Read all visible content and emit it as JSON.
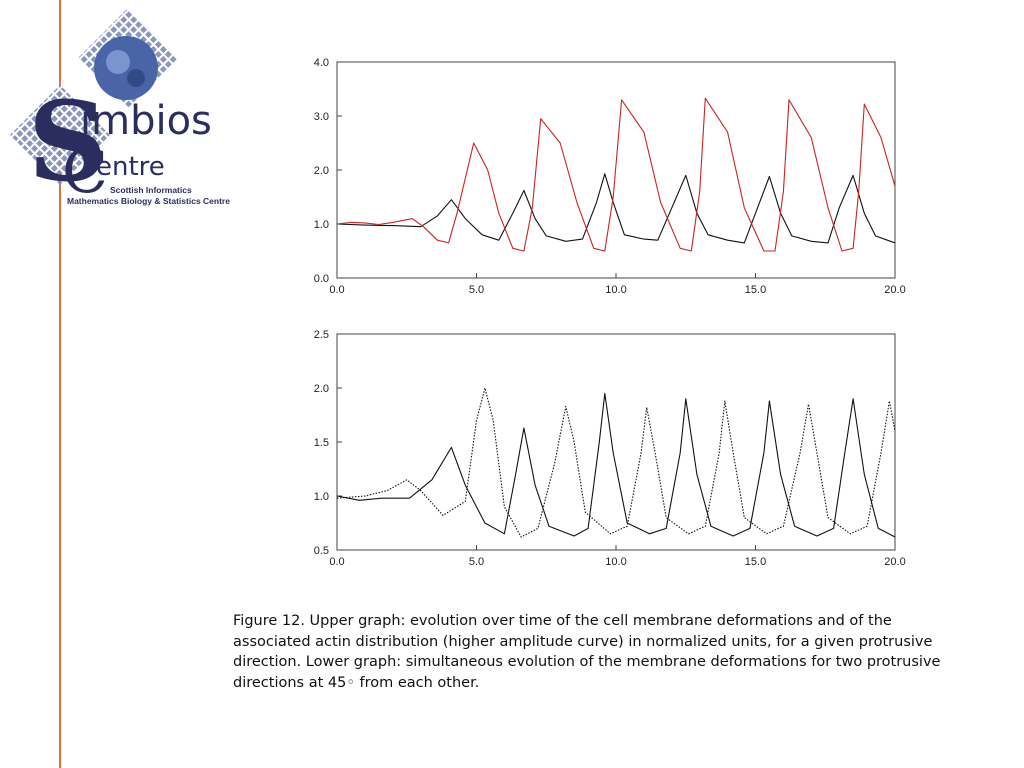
{
  "logo": {
    "name_part1": "imbios",
    "name_part2": "entre",
    "line1": "Scottish Informatics",
    "line2": "Mathematics Biology & Statistics Centre"
  },
  "colors": {
    "accent_line": "#e2703a",
    "actin_curve": "#cc2222",
    "membrane_curve": "#111111"
  },
  "chart_data": [
    {
      "type": "line",
      "xlim": [
        0,
        20
      ],
      "ylim": [
        0,
        4
      ],
      "x_ticks": [
        "0.0",
        "5.0",
        "10.0",
        "15.0",
        "20.0"
      ],
      "y_ticks": [
        "0.0",
        "1.0",
        "2.0",
        "3.0",
        "4.0"
      ],
      "grid": false,
      "series": [
        {
          "color": "#111111",
          "style": "solid",
          "points": [
            [
              0,
              1.0
            ],
            [
              1,
              0.98
            ],
            [
              2,
              0.97
            ],
            [
              3,
              0.95
            ],
            [
              3.6,
              1.15
            ],
            [
              4.1,
              1.45
            ],
            [
              4.6,
              1.1
            ],
            [
              5.2,
              0.8
            ],
            [
              5.8,
              0.7
            ],
            [
              6.3,
              1.2
            ],
            [
              6.7,
              1.62
            ],
            [
              7.1,
              1.1
            ],
            [
              7.5,
              0.78
            ],
            [
              8.2,
              0.68
            ],
            [
              8.8,
              0.72
            ],
            [
              9.3,
              1.4
            ],
            [
              9.6,
              1.93
            ],
            [
              9.9,
              1.4
            ],
            [
              10.3,
              0.8
            ],
            [
              11,
              0.72
            ],
            [
              11.5,
              0.7
            ],
            [
              12,
              1.3
            ],
            [
              12.5,
              1.9
            ],
            [
              12.9,
              1.2
            ],
            [
              13.3,
              0.8
            ],
            [
              14,
              0.7
            ],
            [
              14.6,
              0.65
            ],
            [
              15,
              1.2
            ],
            [
              15.5,
              1.88
            ],
            [
              15.9,
              1.2
            ],
            [
              16.3,
              0.78
            ],
            [
              17,
              0.68
            ],
            [
              17.6,
              0.65
            ],
            [
              18,
              1.3
            ],
            [
              18.5,
              1.9
            ],
            [
              18.9,
              1.2
            ],
            [
              19.3,
              0.78
            ],
            [
              20,
              0.65
            ]
          ]
        },
        {
          "color": "#cc2222",
          "style": "solid",
          "points": [
            [
              0,
              1.0
            ],
            [
              0.5,
              1.03
            ],
            [
              1,
              1.02
            ],
            [
              1.5,
              0.99
            ],
            [
              2,
              1.03
            ],
            [
              2.7,
              1.1
            ],
            [
              3.1,
              0.95
            ],
            [
              3.6,
              0.7
            ],
            [
              4.0,
              0.65
            ],
            [
              4.3,
              1.2
            ],
            [
              4.9,
              2.5
            ],
            [
              5.4,
              2.0
            ],
            [
              5.8,
              1.2
            ],
            [
              6.3,
              0.55
            ],
            [
              6.7,
              0.5
            ],
            [
              7.0,
              1.3
            ],
            [
              7.3,
              2.95
            ],
            [
              8,
              2.5
            ],
            [
              8.6,
              1.4
            ],
            [
              9.2,
              0.55
            ],
            [
              9.6,
              0.5
            ],
            [
              9.9,
              1.5
            ],
            [
              10.2,
              3.3
            ],
            [
              11,
              2.7
            ],
            [
              11.6,
              1.4
            ],
            [
              12.3,
              0.55
            ],
            [
              12.7,
              0.5
            ],
            [
              13.0,
              1.6
            ],
            [
              13.2,
              3.33
            ],
            [
              14,
              2.7
            ],
            [
              14.6,
              1.3
            ],
            [
              15.3,
              0.5
            ],
            [
              15.7,
              0.5
            ],
            [
              16.0,
              1.6
            ],
            [
              16.2,
              3.3
            ],
            [
              17,
              2.6
            ],
            [
              17.6,
              1.3
            ],
            [
              18.1,
              0.5
            ],
            [
              18.5,
              0.55
            ],
            [
              18.7,
              1.6
            ],
            [
              18.9,
              3.22
            ],
            [
              19.5,
              2.6
            ],
            [
              20,
              1.7
            ]
          ]
        }
      ]
    },
    {
      "type": "line",
      "xlim": [
        0,
        20
      ],
      "ylim": [
        0.5,
        2.5
      ],
      "x_ticks": [
        "0.0",
        "5.0",
        "10.0",
        "15.0",
        "20.0"
      ],
      "y_ticks": [
        "0.5",
        "1.0",
        "1.5",
        "2.0",
        "2.5"
      ],
      "grid": false,
      "series": [
        {
          "color": "#111111",
          "style": "solid",
          "points": [
            [
              0,
              1.0
            ],
            [
              0.8,
              0.96
            ],
            [
              1.6,
              0.98
            ],
            [
              2.6,
              0.98
            ],
            [
              3.4,
              1.15
            ],
            [
              4.1,
              1.45
            ],
            [
              4.6,
              1.1
            ],
            [
              5.3,
              0.75
            ],
            [
              6,
              0.65
            ],
            [
              6.4,
              1.2
            ],
            [
              6.7,
              1.63
            ],
            [
              7.1,
              1.1
            ],
            [
              7.6,
              0.72
            ],
            [
              8.5,
              0.63
            ],
            [
              9.0,
              0.7
            ],
            [
              9.4,
              1.5
            ],
            [
              9.6,
              1.95
            ],
            [
              9.9,
              1.4
            ],
            [
              10.4,
              0.75
            ],
            [
              11.2,
              0.65
            ],
            [
              11.8,
              0.7
            ],
            [
              12.3,
              1.4
            ],
            [
              12.5,
              1.9
            ],
            [
              12.9,
              1.2
            ],
            [
              13.4,
              0.72
            ],
            [
              14.2,
              0.63
            ],
            [
              14.8,
              0.7
            ],
            [
              15.3,
              1.4
            ],
            [
              15.5,
              1.88
            ],
            [
              15.9,
              1.2
            ],
            [
              16.4,
              0.72
            ],
            [
              17.2,
              0.63
            ],
            [
              17.8,
              0.7
            ],
            [
              18.2,
              1.4
            ],
            [
              18.5,
              1.9
            ],
            [
              18.9,
              1.2
            ],
            [
              19.4,
              0.7
            ],
            [
              20,
              0.62
            ]
          ]
        },
        {
          "color": "#111111",
          "style": "dotted",
          "points": [
            [
              0,
              0.98
            ],
            [
              1,
              1.0
            ],
            [
              1.8,
              1.05
            ],
            [
              2.5,
              1.15
            ],
            [
              3.0,
              1.05
            ],
            [
              3.8,
              0.82
            ],
            [
              4.6,
              0.95
            ],
            [
              5.0,
              1.7
            ],
            [
              5.3,
              2.0
            ],
            [
              5.6,
              1.7
            ],
            [
              6.0,
              0.9
            ],
            [
              6.6,
              0.62
            ],
            [
              7.2,
              0.7
            ],
            [
              7.8,
              1.3
            ],
            [
              8.2,
              1.83
            ],
            [
              8.5,
              1.5
            ],
            [
              8.9,
              0.85
            ],
            [
              9.8,
              0.65
            ],
            [
              10.4,
              0.72
            ],
            [
              10.9,
              1.4
            ],
            [
              11.1,
              1.82
            ],
            [
              11.4,
              1.4
            ],
            [
              11.8,
              0.8
            ],
            [
              12.6,
              0.65
            ],
            [
              13.2,
              0.72
            ],
            [
              13.7,
              1.4
            ],
            [
              13.9,
              1.88
            ],
            [
              14.2,
              1.4
            ],
            [
              14.6,
              0.8
            ],
            [
              15.4,
              0.65
            ],
            [
              16.0,
              0.72
            ],
            [
              16.6,
              1.4
            ],
            [
              16.9,
              1.85
            ],
            [
              17.2,
              1.4
            ],
            [
              17.6,
              0.8
            ],
            [
              18.4,
              0.65
            ],
            [
              19.0,
              0.72
            ],
            [
              19.5,
              1.4
            ],
            [
              19.8,
              1.88
            ],
            [
              20,
              1.6
            ]
          ]
        }
      ]
    }
  ],
  "caption": "Figure 12. Upper graph: evolution over time of the cell membrane deformations and of the associated actin distribution (higher amplitude curve) in normalized units, for a given protrusive direction. Lower graph: simultaneous evolution of the membrane deformations for two protrusive directions at 45◦ from each other."
}
